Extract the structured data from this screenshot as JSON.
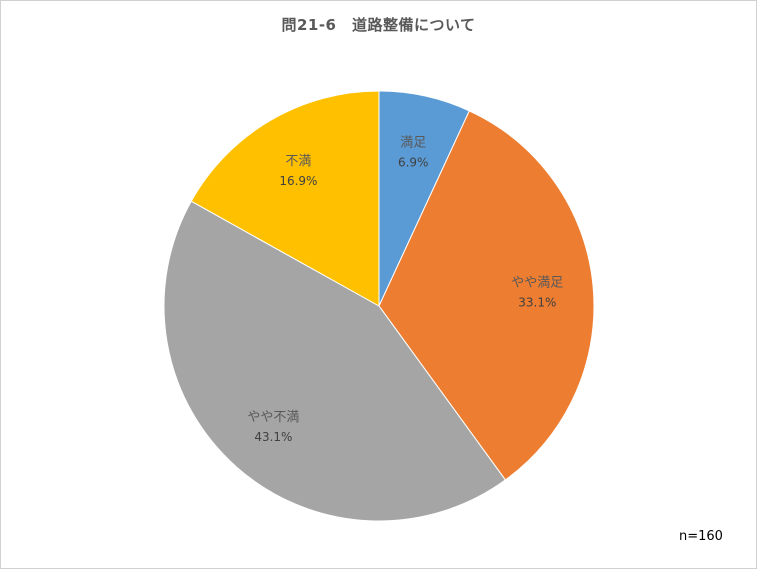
{
  "chart_data": {
    "type": "pie",
    "title": "問21-6　道路整備について",
    "start_angle_deg": 0,
    "direction": "clockwise",
    "slices": [
      {
        "label": "満足",
        "value": 6.9,
        "display": "6.9%",
        "color": "#5B9BD5"
      },
      {
        "label": "やや満足",
        "value": 33.1,
        "display": "33.1%",
        "color": "#ED7D31"
      },
      {
        "label": "やや不満",
        "value": 43.1,
        "display": "43.1%",
        "color": "#A5A5A5"
      },
      {
        "label": "不満",
        "value": 16.9,
        "display": "16.9%",
        "color": "#FFC000"
      }
    ],
    "note": "n=160",
    "legend": "none"
  }
}
